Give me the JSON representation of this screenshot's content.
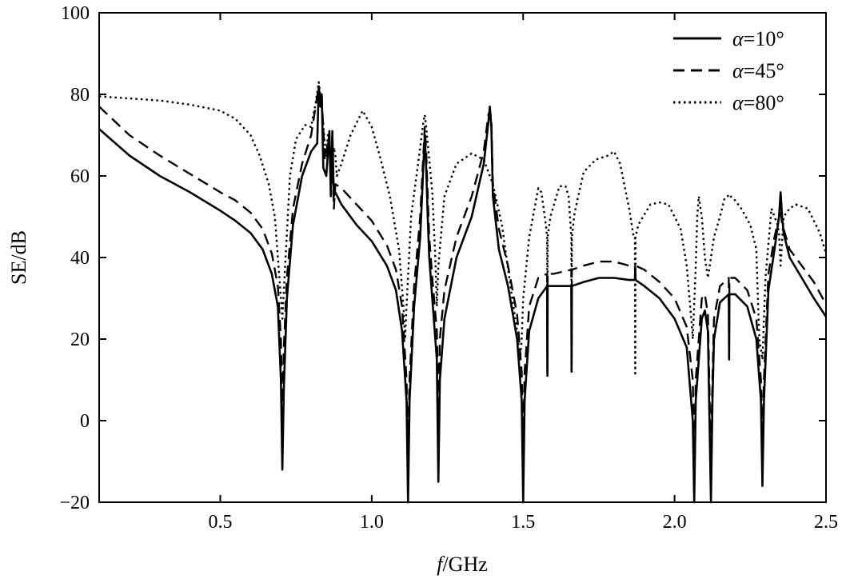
{
  "chart_data": {
    "type": "line",
    "title": "",
    "xlabel": {
      "italic": "f",
      "rest": "/GHz"
    },
    "ylabel": "SE/dB",
    "xlim": [
      0.1,
      2.5
    ],
    "ylim": [
      -20,
      100
    ],
    "xticks": [
      0.5,
      1.0,
      1.5,
      2.0,
      2.5
    ],
    "xtick_labels": [
      "0.5",
      "1.0",
      "1.5",
      "2.0",
      "2.5"
    ],
    "yticks": [
      -20,
      0,
      20,
      40,
      60,
      80,
      100
    ],
    "ytick_labels": [
      "−20",
      "0",
      "20",
      "40",
      "60",
      "80",
      "100"
    ],
    "grid": false,
    "legend_position": "top-right",
    "series": [
      {
        "name": "α=10°",
        "symbol": "α",
        "value": "=10°",
        "style": "solid",
        "x": [
          0.1,
          0.2,
          0.3,
          0.4,
          0.5,
          0.55,
          0.6,
          0.64,
          0.67,
          0.69,
          0.7,
          0.705,
          0.71,
          0.72,
          0.74,
          0.77,
          0.8,
          0.82,
          0.825,
          0.83,
          0.835,
          0.84,
          0.85,
          0.86,
          0.865,
          0.87,
          0.875,
          0.88,
          0.9,
          0.95,
          1.0,
          1.05,
          1.08,
          1.1,
          1.115,
          1.12,
          1.125,
          1.14,
          1.16,
          1.175,
          1.18,
          1.185,
          1.19,
          1.2,
          1.215,
          1.22,
          1.225,
          1.24,
          1.28,
          1.33,
          1.37,
          1.385,
          1.39,
          1.395,
          1.4,
          1.42,
          1.45,
          1.48,
          1.495,
          1.5,
          1.505,
          1.52,
          1.55,
          1.579,
          1.58,
          1.581,
          1.6,
          1.659,
          1.66,
          1.661,
          1.7,
          1.75,
          1.8,
          1.85,
          1.869,
          1.87,
          1.871,
          1.9,
          1.95,
          2.0,
          2.04,
          2.06,
          2.065,
          2.07,
          2.09,
          2.1,
          2.11,
          2.12,
          2.125,
          2.13,
          2.15,
          2.179,
          2.18,
          2.181,
          2.2,
          2.24,
          2.27,
          2.285,
          2.29,
          2.295,
          2.31,
          2.33,
          2.345,
          2.35,
          2.355,
          2.36,
          2.38,
          2.42,
          2.46,
          2.5
        ],
        "y": [
          71.5,
          65,
          60,
          56,
          51.5,
          49,
          46,
          42,
          36,
          28,
          10,
          -12,
          8,
          30,
          48,
          60,
          66,
          68,
          82,
          77,
          80,
          62,
          60,
          71,
          55,
          71,
          55,
          56,
          53,
          48,
          44,
          38,
          32,
          22,
          5,
          -20,
          5,
          28,
          45,
          70,
          62,
          50,
          40,
          30,
          15,
          -15,
          10,
          25,
          40,
          50,
          63,
          73,
          77,
          72,
          55,
          42,
          33,
          20,
          5,
          -20,
          5,
          22,
          30,
          33,
          11,
          33,
          33,
          33,
          12,
          33,
          34,
          35,
          35,
          34.5,
          34.5,
          37,
          34.5,
          33,
          30,
          25,
          18,
          0,
          -20,
          5,
          25,
          27,
          22,
          -20,
          5,
          20,
          29,
          31,
          15,
          31,
          31,
          28,
          20,
          5,
          -16,
          5,
          32,
          42,
          50,
          56,
          50,
          46,
          40,
          35,
          30,
          25.5
        ]
      },
      {
        "name": "α=45°",
        "symbol": "α",
        "value": "=45°",
        "style": "dashed",
        "x": [
          0.1,
          0.2,
          0.3,
          0.4,
          0.5,
          0.55,
          0.6,
          0.64,
          0.67,
          0.69,
          0.7,
          0.705,
          0.71,
          0.72,
          0.74,
          0.77,
          0.8,
          0.825,
          0.83,
          0.835,
          0.845,
          0.86,
          0.865,
          0.87,
          0.875,
          0.88,
          0.9,
          0.95,
          1.0,
          1.05,
          1.08,
          1.1,
          1.115,
          1.12,
          1.125,
          1.14,
          1.16,
          1.175,
          1.18,
          1.185,
          1.19,
          1.2,
          1.215,
          1.22,
          1.225,
          1.24,
          1.28,
          1.33,
          1.37,
          1.385,
          1.39,
          1.395,
          1.4,
          1.42,
          1.45,
          1.48,
          1.495,
          1.5,
          1.505,
          1.52,
          1.55,
          1.579,
          1.58,
          1.581,
          1.6,
          1.659,
          1.66,
          1.661,
          1.7,
          1.75,
          1.8,
          1.85,
          1.869,
          1.87,
          1.871,
          1.9,
          1.95,
          2.0,
          2.04,
          2.06,
          2.065,
          2.07,
          2.09,
          2.1,
          2.11,
          2.12,
          2.125,
          2.13,
          2.15,
          2.179,
          2.18,
          2.181,
          2.2,
          2.24,
          2.27,
          2.285,
          2.29,
          2.295,
          2.31,
          2.33,
          2.345,
          2.35,
          2.355,
          2.36,
          2.38,
          2.42,
          2.46,
          2.5
        ],
        "y": [
          77,
          70,
          65,
          60.5,
          56,
          54,
          51,
          47,
          41,
          33,
          20,
          2,
          18,
          35,
          52,
          63,
          70,
          82,
          78,
          79,
          64,
          70,
          58,
          64,
          52,
          58,
          57,
          53,
          49,
          43,
          37,
          28,
          10,
          -8,
          10,
          33,
          50,
          72,
          66,
          55,
          45,
          35,
          22,
          2,
          20,
          32,
          45,
          55,
          66,
          75,
          76,
          74,
          58,
          47,
          38,
          26,
          12,
          -5,
          12,
          28,
          35,
          36,
          13,
          36,
          36,
          37,
          13,
          37,
          38,
          39,
          39,
          38,
          38,
          36,
          38,
          37,
          34,
          30,
          23,
          10,
          -10,
          10,
          30,
          31,
          26,
          -10,
          10,
          25,
          33,
          35,
          18,
          35,
          35,
          32,
          25,
          10,
          -2,
          10,
          36,
          45,
          50,
          52,
          48,
          47,
          42,
          38,
          34,
          28.5
        ]
      },
      {
        "name": "α=80°",
        "symbol": "α",
        "value": "=80°",
        "style": "dotted",
        "x": [
          0.1,
          0.2,
          0.3,
          0.4,
          0.5,
          0.55,
          0.6,
          0.63,
          0.66,
          0.68,
          0.69,
          0.7,
          0.705,
          0.71,
          0.73,
          0.75,
          0.78,
          0.8,
          0.815,
          0.825,
          0.83,
          0.835,
          0.845,
          0.85,
          0.855,
          0.86,
          0.865,
          0.87,
          0.875,
          0.88,
          0.885,
          0.9,
          0.93,
          0.97,
          1.0,
          1.03,
          1.06,
          1.09,
          1.105,
          1.11,
          1.115,
          1.13,
          1.16,
          1.17,
          1.175,
          1.18,
          1.2,
          1.21,
          1.215,
          1.22,
          1.24,
          1.28,
          1.33,
          1.37,
          1.4,
          1.43,
          1.46,
          1.48,
          1.49,
          1.495,
          1.5,
          1.52,
          1.55,
          1.56,
          1.575,
          1.579,
          1.58,
          1.581,
          1.59,
          1.62,
          1.64,
          1.65,
          1.659,
          1.66,
          1.661,
          1.67,
          1.7,
          1.74,
          1.78,
          1.8,
          1.82,
          1.85,
          1.865,
          1.869,
          1.87,
          1.871,
          1.88,
          1.92,
          1.95,
          1.98,
          2.02,
          2.04,
          2.055,
          2.06,
          2.07,
          2.075,
          2.08,
          2.09,
          2.1,
          2.11,
          2.13,
          2.15,
          2.165,
          2.175,
          2.18,
          2.185,
          2.2,
          2.22,
          2.25,
          2.27,
          2.275,
          2.28,
          2.29,
          2.3,
          2.32,
          2.34,
          2.345,
          2.35,
          2.36,
          2.38,
          2.4,
          2.44,
          2.48,
          2.5
        ],
        "y": [
          79.5,
          79,
          78.5,
          77.5,
          76,
          74,
          70,
          65,
          58,
          50,
          40,
          30,
          25,
          32,
          60,
          69,
          72.5,
          72,
          78,
          83,
          80,
          77,
          68,
          65,
          70,
          67,
          65,
          62,
          67,
          65,
          60,
          63,
          70,
          76,
          72,
          64,
          55,
          42,
          28,
          20,
          28,
          50,
          67,
          73,
          75,
          72,
          56,
          40,
          28,
          38,
          55,
          63,
          65.5,
          64,
          58,
          48,
          32,
          22,
          15,
          20,
          30,
          45,
          57,
          56,
          48,
          45,
          12,
          45,
          50,
          57.5,
          57.5,
          55,
          45,
          12,
          45,
          51,
          61,
          64,
          65,
          66,
          63,
          52,
          45,
          45,
          11,
          45,
          48,
          53,
          53.5,
          53,
          47,
          38,
          25,
          20,
          38,
          50,
          55,
          50,
          40,
          35,
          45,
          50,
          54.5,
          55,
          55.5,
          55,
          54,
          52,
          48,
          42,
          30,
          20,
          15,
          35,
          52,
          48,
          46,
          38,
          50,
          52,
          53,
          52,
          46,
          41
        ]
      }
    ]
  }
}
